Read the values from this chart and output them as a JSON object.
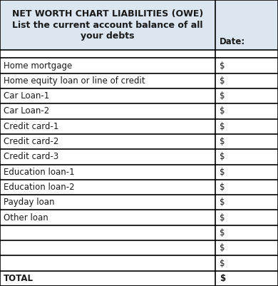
{
  "title_line1": "NET WORTH CHART LIABILITIES (OWE)",
  "title_line2": "List the current account balance of all",
  "title_line3": "your debts",
  "date_label": "Date:",
  "header_bg": "#dce6f1",
  "body_bg": "#ffffff",
  "col_split": 0.775,
  "rows": [
    {
      "label": "Home mortgage",
      "dollar": true,
      "bold": false
    },
    {
      "label": "Home equity loan or line of credit",
      "dollar": true,
      "bold": false
    },
    {
      "label": "Car Loan-1",
      "dollar": true,
      "bold": false
    },
    {
      "label": "Car Loan-2",
      "dollar": true,
      "bold": false
    },
    {
      "label": "Credit card-1",
      "dollar": true,
      "bold": false
    },
    {
      "label": "Credit card-2",
      "dollar": true,
      "bold": false
    },
    {
      "label": "Credit card-3",
      "dollar": true,
      "bold": false
    },
    {
      "label": "Education loan-1",
      "dollar": true,
      "bold": false
    },
    {
      "label": "Education loan-2",
      "dollar": true,
      "bold": false
    },
    {
      "label": "Payday loan",
      "dollar": true,
      "bold": false
    },
    {
      "label": "Other loan",
      "dollar": true,
      "bold": false
    },
    {
      "label": "",
      "dollar": true,
      "bold": false
    },
    {
      "label": "",
      "dollar": true,
      "bold": false
    },
    {
      "label": "",
      "dollar": true,
      "bold": false
    },
    {
      "label": "TOTAL",
      "dollar": true,
      "bold": true
    }
  ],
  "font_size_title": 9.0,
  "font_size_body": 8.5,
  "text_color": "#1a1a1a",
  "border_color": "#000000",
  "figsize": [
    3.9,
    4.01
  ],
  "dpi": 100
}
